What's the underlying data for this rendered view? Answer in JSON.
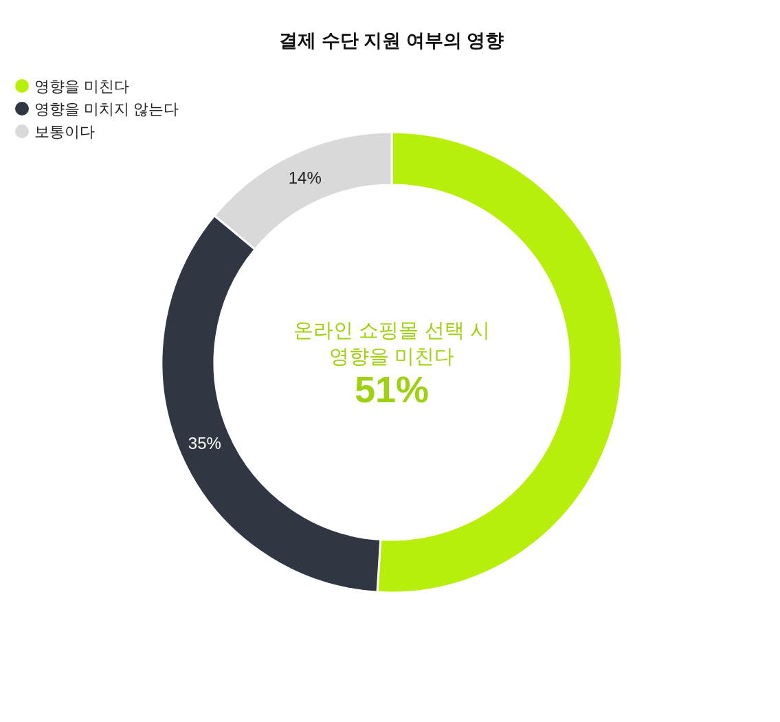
{
  "chart_data": {
    "type": "donut",
    "title": "결제 수단 지원 여부의 영향",
    "categories": [
      "영향을 미친다",
      "영향을 미치지 않는다",
      "보통이다"
    ],
    "values": [
      51,
      35,
      14
    ],
    "colors": [
      "#b8ef0a",
      "#303642",
      "#d9d9d9"
    ],
    "value_labels": [
      null,
      "35%",
      "14%"
    ],
    "legend": "top left",
    "annotations": [
      "온라인 쇼핑몰 선택 시\n영향을 미친다",
      "51%"
    ]
  }
}
